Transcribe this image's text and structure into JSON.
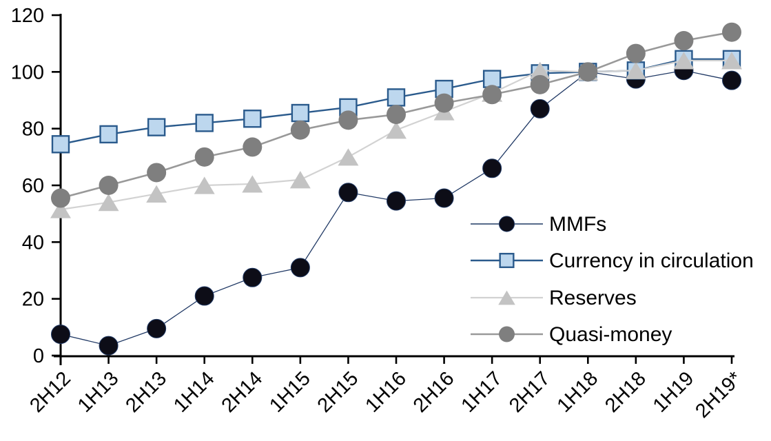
{
  "chart_data": {
    "type": "line",
    "title": "",
    "xlabel": "",
    "ylabel": "",
    "categories": [
      "2H12",
      "1H13",
      "2H13",
      "1H14",
      "2H14",
      "1H15",
      "2H15",
      "1H16",
      "2H16",
      "1H17",
      "2H17",
      "1H18",
      "2H18",
      "1H19",
      "2H19*"
    ],
    "series": [
      {
        "name": "MMFs",
        "marker": "circle",
        "marker_color": "#0d0d17",
        "marker_outline": "#1f3864",
        "line_color": "#1f3864",
        "line_width": 1.3,
        "marker_size": 27,
        "values": [
          7.5,
          3.5,
          9.5,
          21,
          27.5,
          31,
          57.5,
          54.5,
          55.5,
          66,
          87,
          100,
          97.5,
          100.5,
          97
        ]
      },
      {
        "name": "Currency in circulation",
        "marker": "square",
        "marker_color": "#bdd7ee",
        "marker_outline": "#2a5a8c",
        "line_color": "#2a5a8c",
        "line_width": 2.4,
        "marker_size": 24,
        "values": [
          74.5,
          78,
          80.5,
          82,
          83.5,
          85.5,
          87.5,
          91,
          94,
          97.5,
          99.5,
          100,
          100.5,
          104.5,
          104.5
        ]
      },
      {
        "name": "Reserves",
        "marker": "triangle",
        "marker_color": "#c3c3c3",
        "marker_outline": "none",
        "line_color": "#d2d2d2",
        "line_width": 2.2,
        "marker_size": 28,
        "values": [
          51.5,
          54,
          57,
          60,
          60.5,
          62,
          70,
          79.5,
          86,
          92.5,
          100.5,
          100,
          100.5,
          104,
          104
        ]
      },
      {
        "name": "Quasi-money",
        "marker": "circle",
        "marker_color": "#7f7f7f",
        "marker_outline": "none",
        "line_color": "#999999",
        "line_width": 2.6,
        "marker_size": 28,
        "values": [
          55.5,
          60,
          64.5,
          70,
          73.5,
          79.5,
          83,
          85,
          89,
          92,
          95.5,
          100,
          106.5,
          111,
          114
        ]
      }
    ],
    "ylim": [
      0,
      120
    ],
    "y_ticks": [
      0,
      20,
      40,
      60,
      80,
      100,
      120
    ],
    "grid": "off",
    "legend_position": "inside-right",
    "axis_color": "#000000",
    "background_color": "#ffffff"
  }
}
